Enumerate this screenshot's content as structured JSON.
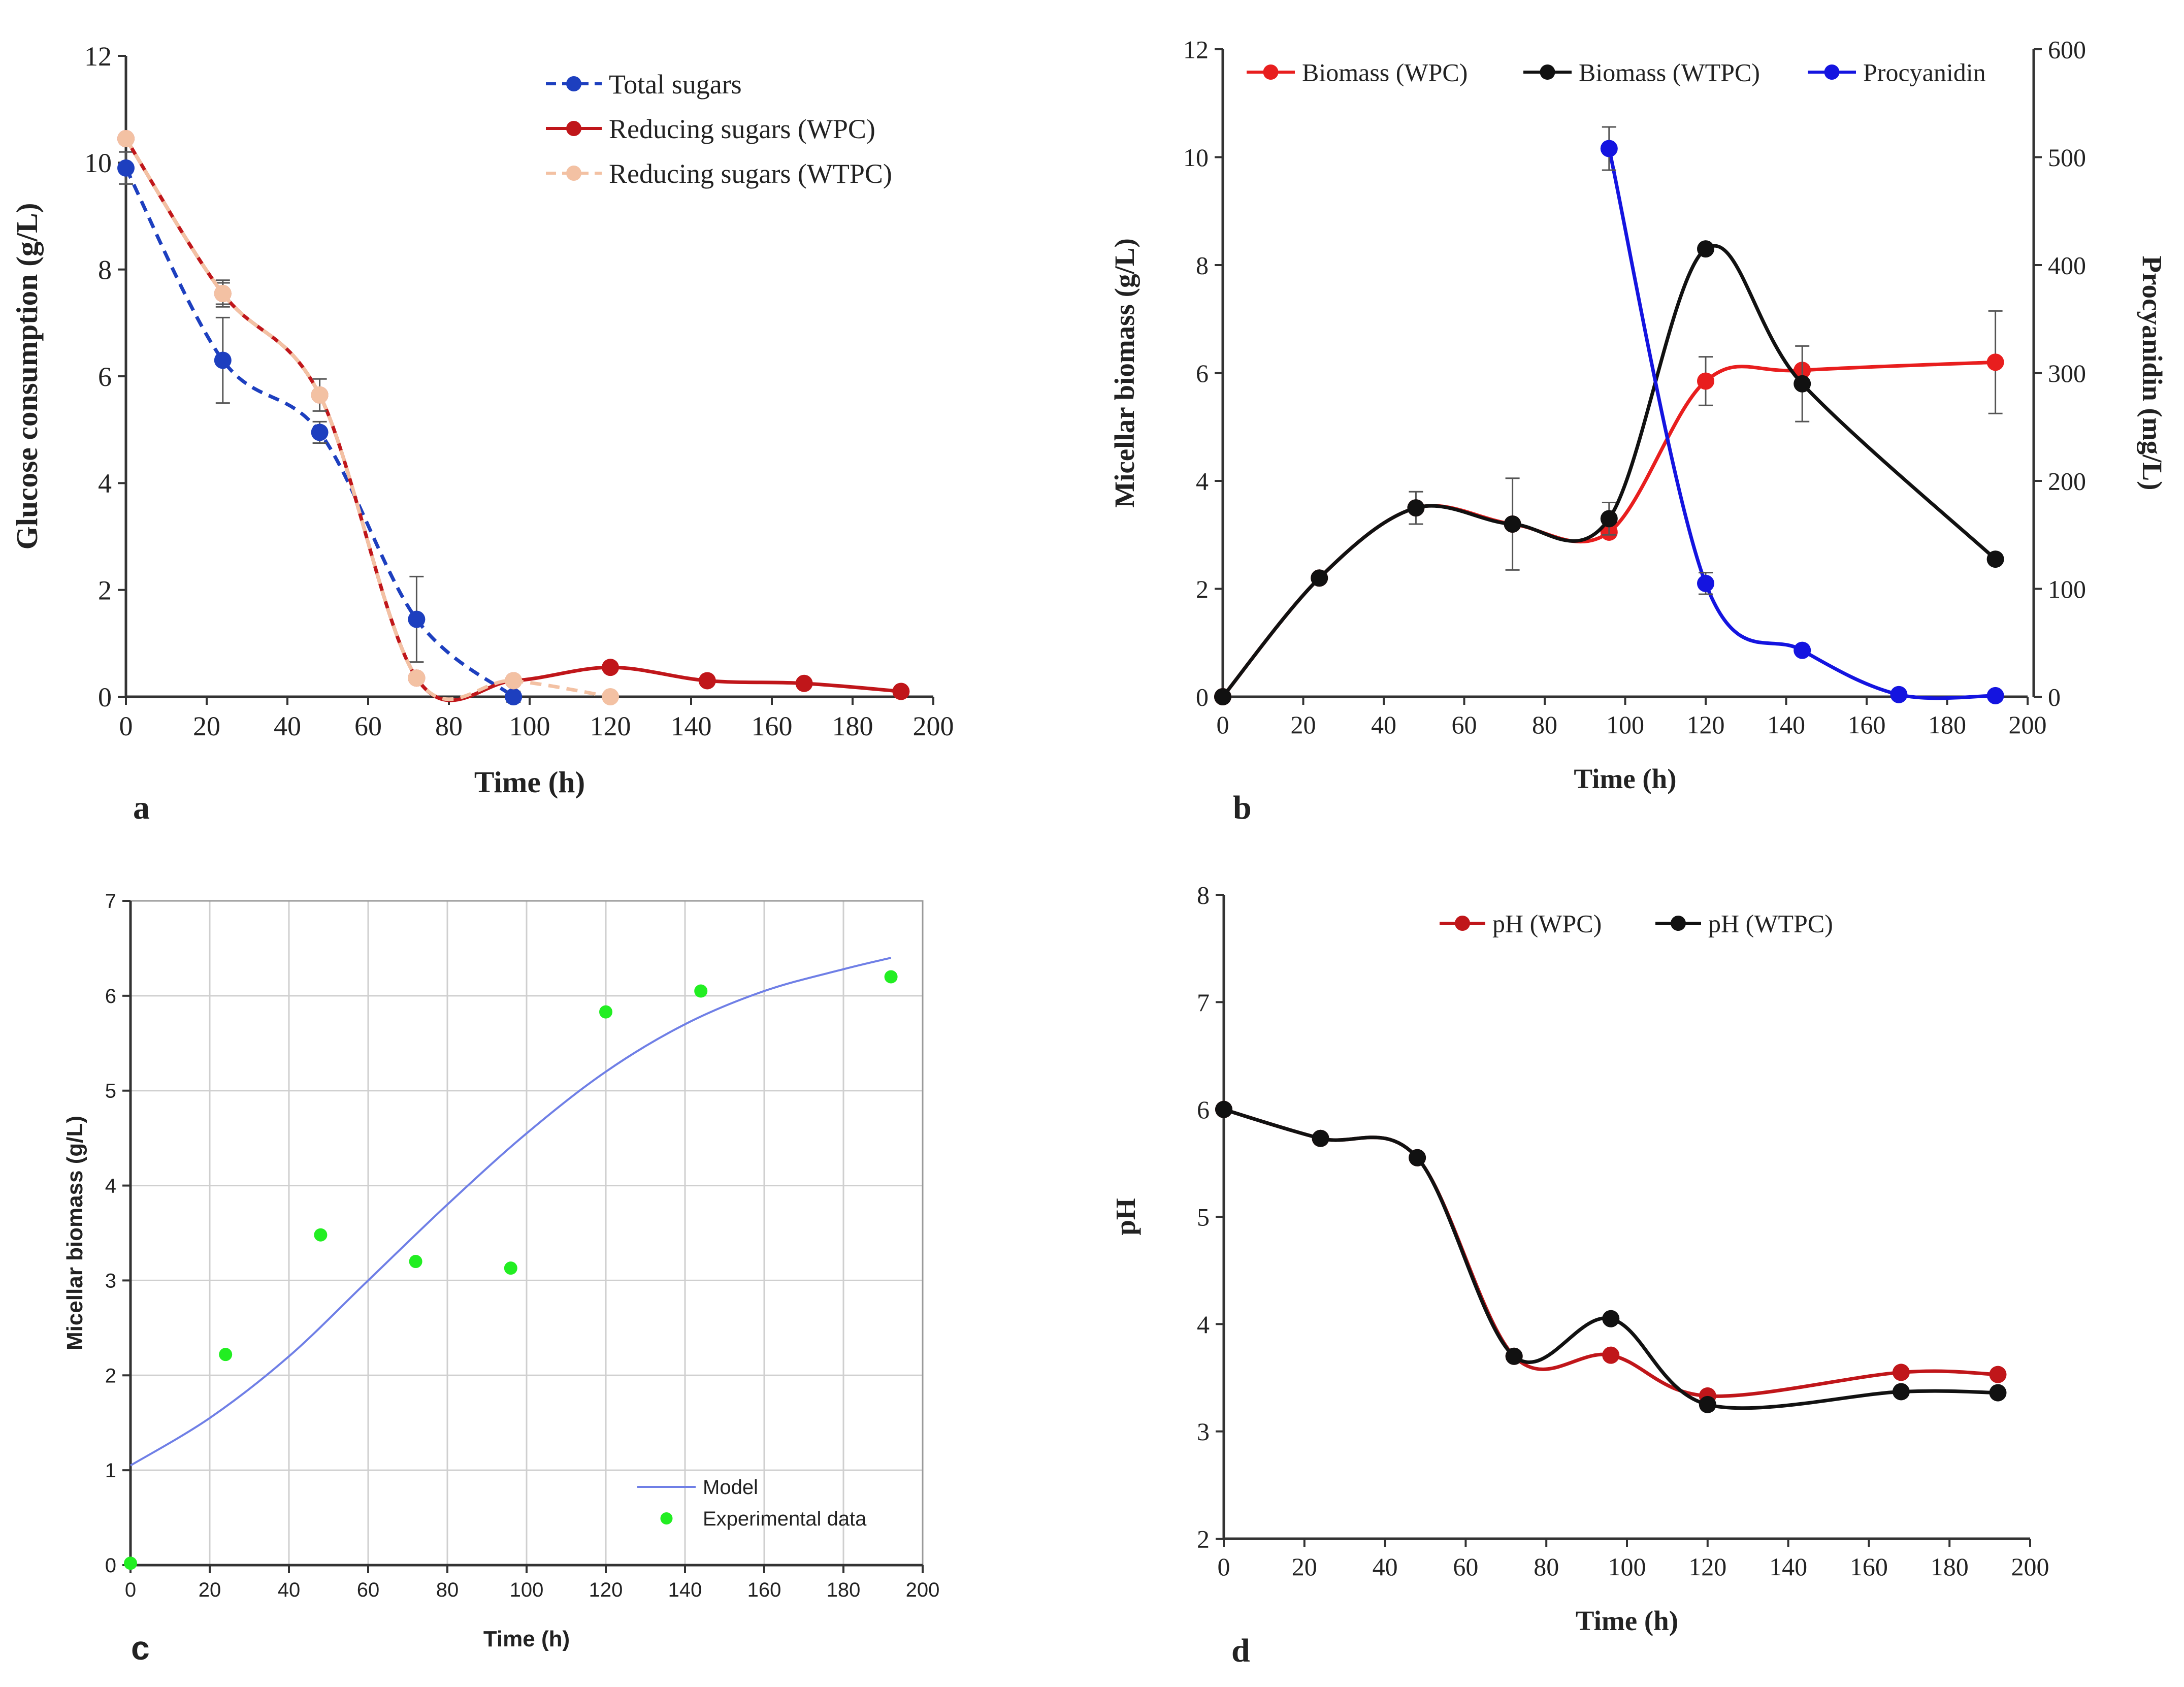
{
  "chart_data": [
    {
      "panel": "a",
      "type": "line",
      "xlabel": "Time (h)",
      "ylabel": "Glucose consumption  (g/L)",
      "xlim": [
        0,
        200
      ],
      "ylim": [
        0,
        12
      ],
      "xticks": [
        0,
        20,
        40,
        60,
        80,
        100,
        120,
        140,
        160,
        180,
        200
      ],
      "yticks": [
        0,
        2,
        4,
        6,
        8,
        10,
        12
      ],
      "legend_position": "top-right",
      "series": [
        {
          "name": "Total sugars",
          "color": "#1d3fbf",
          "style": "dashed",
          "x": [
            0,
            24,
            48,
            72,
            96
          ],
          "y": [
            9.9,
            6.3,
            4.95,
            1.45,
            0.0
          ],
          "err": [
            0.3,
            0.8,
            0.2,
            0.8,
            0.1
          ]
        },
        {
          "name": "Reducing sugars (WPC)",
          "color": "#c0161a",
          "style": "solid",
          "x": [
            0,
            24,
            48,
            72,
            96,
            120,
            144,
            168,
            192
          ],
          "y": [
            10.45,
            7.55,
            5.65,
            0.35,
            0.3,
            0.55,
            0.3,
            0.25,
            0.1
          ],
          "err": [
            0,
            0.2,
            0,
            0,
            0,
            0,
            0,
            0,
            0
          ]
        },
        {
          "name": "Reducing sugars (WTPC)",
          "color": "#f3c1a3",
          "style": "dashed",
          "x": [
            0,
            24,
            48,
            72,
            96,
            120
          ],
          "y": [
            10.45,
            7.55,
            5.65,
            0.35,
            0.3,
            0.0
          ],
          "err": [
            0,
            0.25,
            0.3,
            0,
            0,
            0
          ]
        }
      ]
    },
    {
      "panel": "b",
      "type": "line",
      "xlabel": "Time (h)",
      "ylabel": "Micellar biomass (g/L)",
      "ylabel_right": "Procyanidin (mg/L)",
      "xlim": [
        0,
        200
      ],
      "ylim": [
        0,
        12
      ],
      "ylim_right": [
        0,
        600
      ],
      "xticks": [
        0,
        20,
        40,
        60,
        80,
        100,
        120,
        140,
        160,
        180,
        200
      ],
      "yticks": [
        0,
        2,
        4,
        6,
        8,
        10,
        12
      ],
      "yticks_right": [
        0,
        100,
        200,
        300,
        400,
        500,
        600
      ],
      "legend_position": "top",
      "series": [
        {
          "name": "Biomass (WPC)",
          "color": "#e81e1e",
          "axis": "left",
          "x": [
            0,
            24,
            48,
            72,
            96,
            120,
            144,
            192
          ],
          "y": [
            0,
            2.2,
            3.5,
            3.2,
            3.05,
            5.85,
            6.05,
            6.2
          ],
          "err": [
            0,
            0,
            0,
            0,
            0,
            0.45,
            0,
            0.95
          ]
        },
        {
          "name": "Biomass (WTPC)",
          "color": "#111111",
          "axis": "left",
          "x": [
            0,
            24,
            48,
            72,
            96,
            120,
            144,
            192
          ],
          "y": [
            0,
            2.2,
            3.5,
            3.2,
            3.3,
            8.3,
            5.8,
            2.55
          ],
          "err": [
            0,
            0,
            0.3,
            0.85,
            0.3,
            0,
            0.7,
            0
          ]
        },
        {
          "name": "Procyanidin",
          "color": "#1414e0",
          "axis": "right",
          "x": [
            96,
            120,
            144,
            168,
            192
          ],
          "y": [
            508,
            105,
            43,
            2,
            1
          ],
          "err": [
            20,
            10,
            0,
            0,
            0
          ]
        }
      ]
    },
    {
      "panel": "c",
      "type": "scatter",
      "xlabel": "Time (h)",
      "ylabel": "Micellar biomass (g/L)",
      "xlim": [
        0,
        200
      ],
      "ylim": [
        0,
        7
      ],
      "xticks": [
        0,
        20,
        40,
        60,
        80,
        100,
        120,
        140,
        160,
        180,
        200
      ],
      "yticks": [
        0,
        1,
        2,
        3,
        4,
        5,
        6,
        7
      ],
      "grid": true,
      "legend_position": "bottom-right",
      "series": [
        {
          "name": "Model",
          "color": "#6f7fe6",
          "style": "line",
          "x": [
            0,
            20,
            40,
            60,
            80,
            100,
            120,
            140,
            160,
            180,
            192
          ],
          "y": [
            1.05,
            1.55,
            2.2,
            3.0,
            3.8,
            4.55,
            5.2,
            5.7,
            6.05,
            6.28,
            6.4
          ]
        },
        {
          "name": "Experimental data",
          "color": "#22ee22",
          "style": "markers",
          "x": [
            0,
            24,
            48,
            72,
            96,
            120,
            144,
            192
          ],
          "y": [
            0.02,
            2.22,
            3.48,
            3.2,
            3.13,
            5.83,
            6.05,
            6.2
          ]
        }
      ]
    },
    {
      "panel": "d",
      "type": "line",
      "xlabel": "Time  (h)",
      "ylabel": "pH",
      "xlim": [
        0,
        200
      ],
      "ylim": [
        2,
        8
      ],
      "xticks": [
        0,
        20,
        40,
        60,
        80,
        100,
        120,
        140,
        160,
        180,
        200
      ],
      "yticks": [
        2,
        3,
        4,
        5,
        6,
        7,
        8
      ],
      "legend_position": "top",
      "series": [
        {
          "name": "pH (WPC)",
          "color": "#c0161a",
          "x": [
            0,
            24,
            48,
            72,
            96,
            120,
            168,
            192
          ],
          "y": [
            6.0,
            5.73,
            5.55,
            3.7,
            3.71,
            3.33,
            3.55,
            3.53
          ]
        },
        {
          "name": "pH (WTPC)",
          "color": "#111111",
          "x": [
            0,
            24,
            48,
            72,
            96,
            120,
            168,
            192
          ],
          "y": [
            6.0,
            5.73,
            5.55,
            3.7,
            4.05,
            3.25,
            3.37,
            3.36
          ]
        }
      ]
    }
  ]
}
